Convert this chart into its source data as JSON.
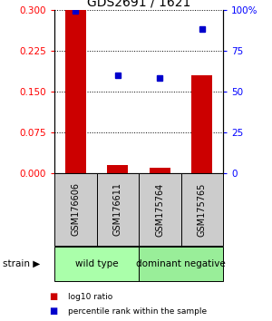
{
  "title": "GDS2691 / 1621",
  "samples": [
    "GSM176606",
    "GSM176611",
    "GSM175764",
    "GSM175765"
  ],
  "log10_ratio": [
    0.3,
    0.015,
    0.01,
    0.18
  ],
  "percentile_rank": [
    99.0,
    60.0,
    58.0,
    88.0
  ],
  "bar_color": "#cc0000",
  "dot_color": "#0000cc",
  "ylim_left": [
    0,
    0.3
  ],
  "ylim_right": [
    0,
    100
  ],
  "yticks_left": [
    0,
    0.075,
    0.15,
    0.225,
    0.3
  ],
  "yticks_right": [
    0,
    25,
    50,
    75,
    100
  ],
  "ytick_labels_right": [
    "0",
    "25",
    "50",
    "75",
    "100%"
  ],
  "groups": [
    {
      "label": "wild type",
      "indices": [
        0,
        1
      ],
      "color": "#aaffaa"
    },
    {
      "label": "dominant negative",
      "indices": [
        2,
        3
      ],
      "color": "#99ee99"
    }
  ],
  "legend_bar_label": "log10 ratio",
  "legend_dot_label": "percentile rank within the sample",
  "strain_label": "strain",
  "background_color": "#ffffff",
  "gray_box_color": "#cccccc",
  "bar_width": 0.5
}
